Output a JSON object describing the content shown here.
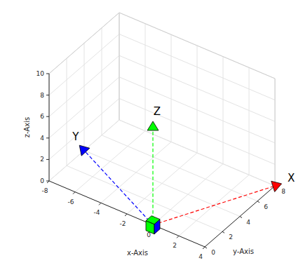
{
  "chart_data": {
    "type": "scatter3d",
    "xlabel": "x-Axis",
    "ylabel": "y-Axis",
    "zlabel": "z-Axis",
    "xlim": [
      -8,
      4
    ],
    "ylim": [
      0,
      8
    ],
    "zlim": [
      0,
      10
    ],
    "xticks": [
      -8,
      -6,
      -4,
      -2,
      0,
      2,
      4
    ],
    "yticks": [
      0,
      2,
      4,
      6,
      8
    ],
    "zticks": [
      0,
      2,
      4,
      6,
      8,
      10
    ],
    "grid": true,
    "series": [
      {
        "name": "X",
        "color": "#ff0000",
        "x": [
          0,
          4
        ],
        "y": [
          0,
          8
        ],
        "z": [
          0,
          0
        ],
        "marker": "triangle",
        "line_style": "dashed"
      },
      {
        "name": "Y",
        "color": "#0000ff",
        "x": [
          0,
          -8
        ],
        "y": [
          0,
          4
        ],
        "z": [
          0,
          0
        ],
        "marker": "triangle",
        "line_style": "dashed"
      },
      {
        "name": "Z",
        "color": "#00ff00",
        "x": [
          0,
          0
        ],
        "y": [
          0,
          0
        ],
        "z": [
          0,
          9
        ],
        "marker": "triangle",
        "line_style": "dashed"
      }
    ]
  }
}
